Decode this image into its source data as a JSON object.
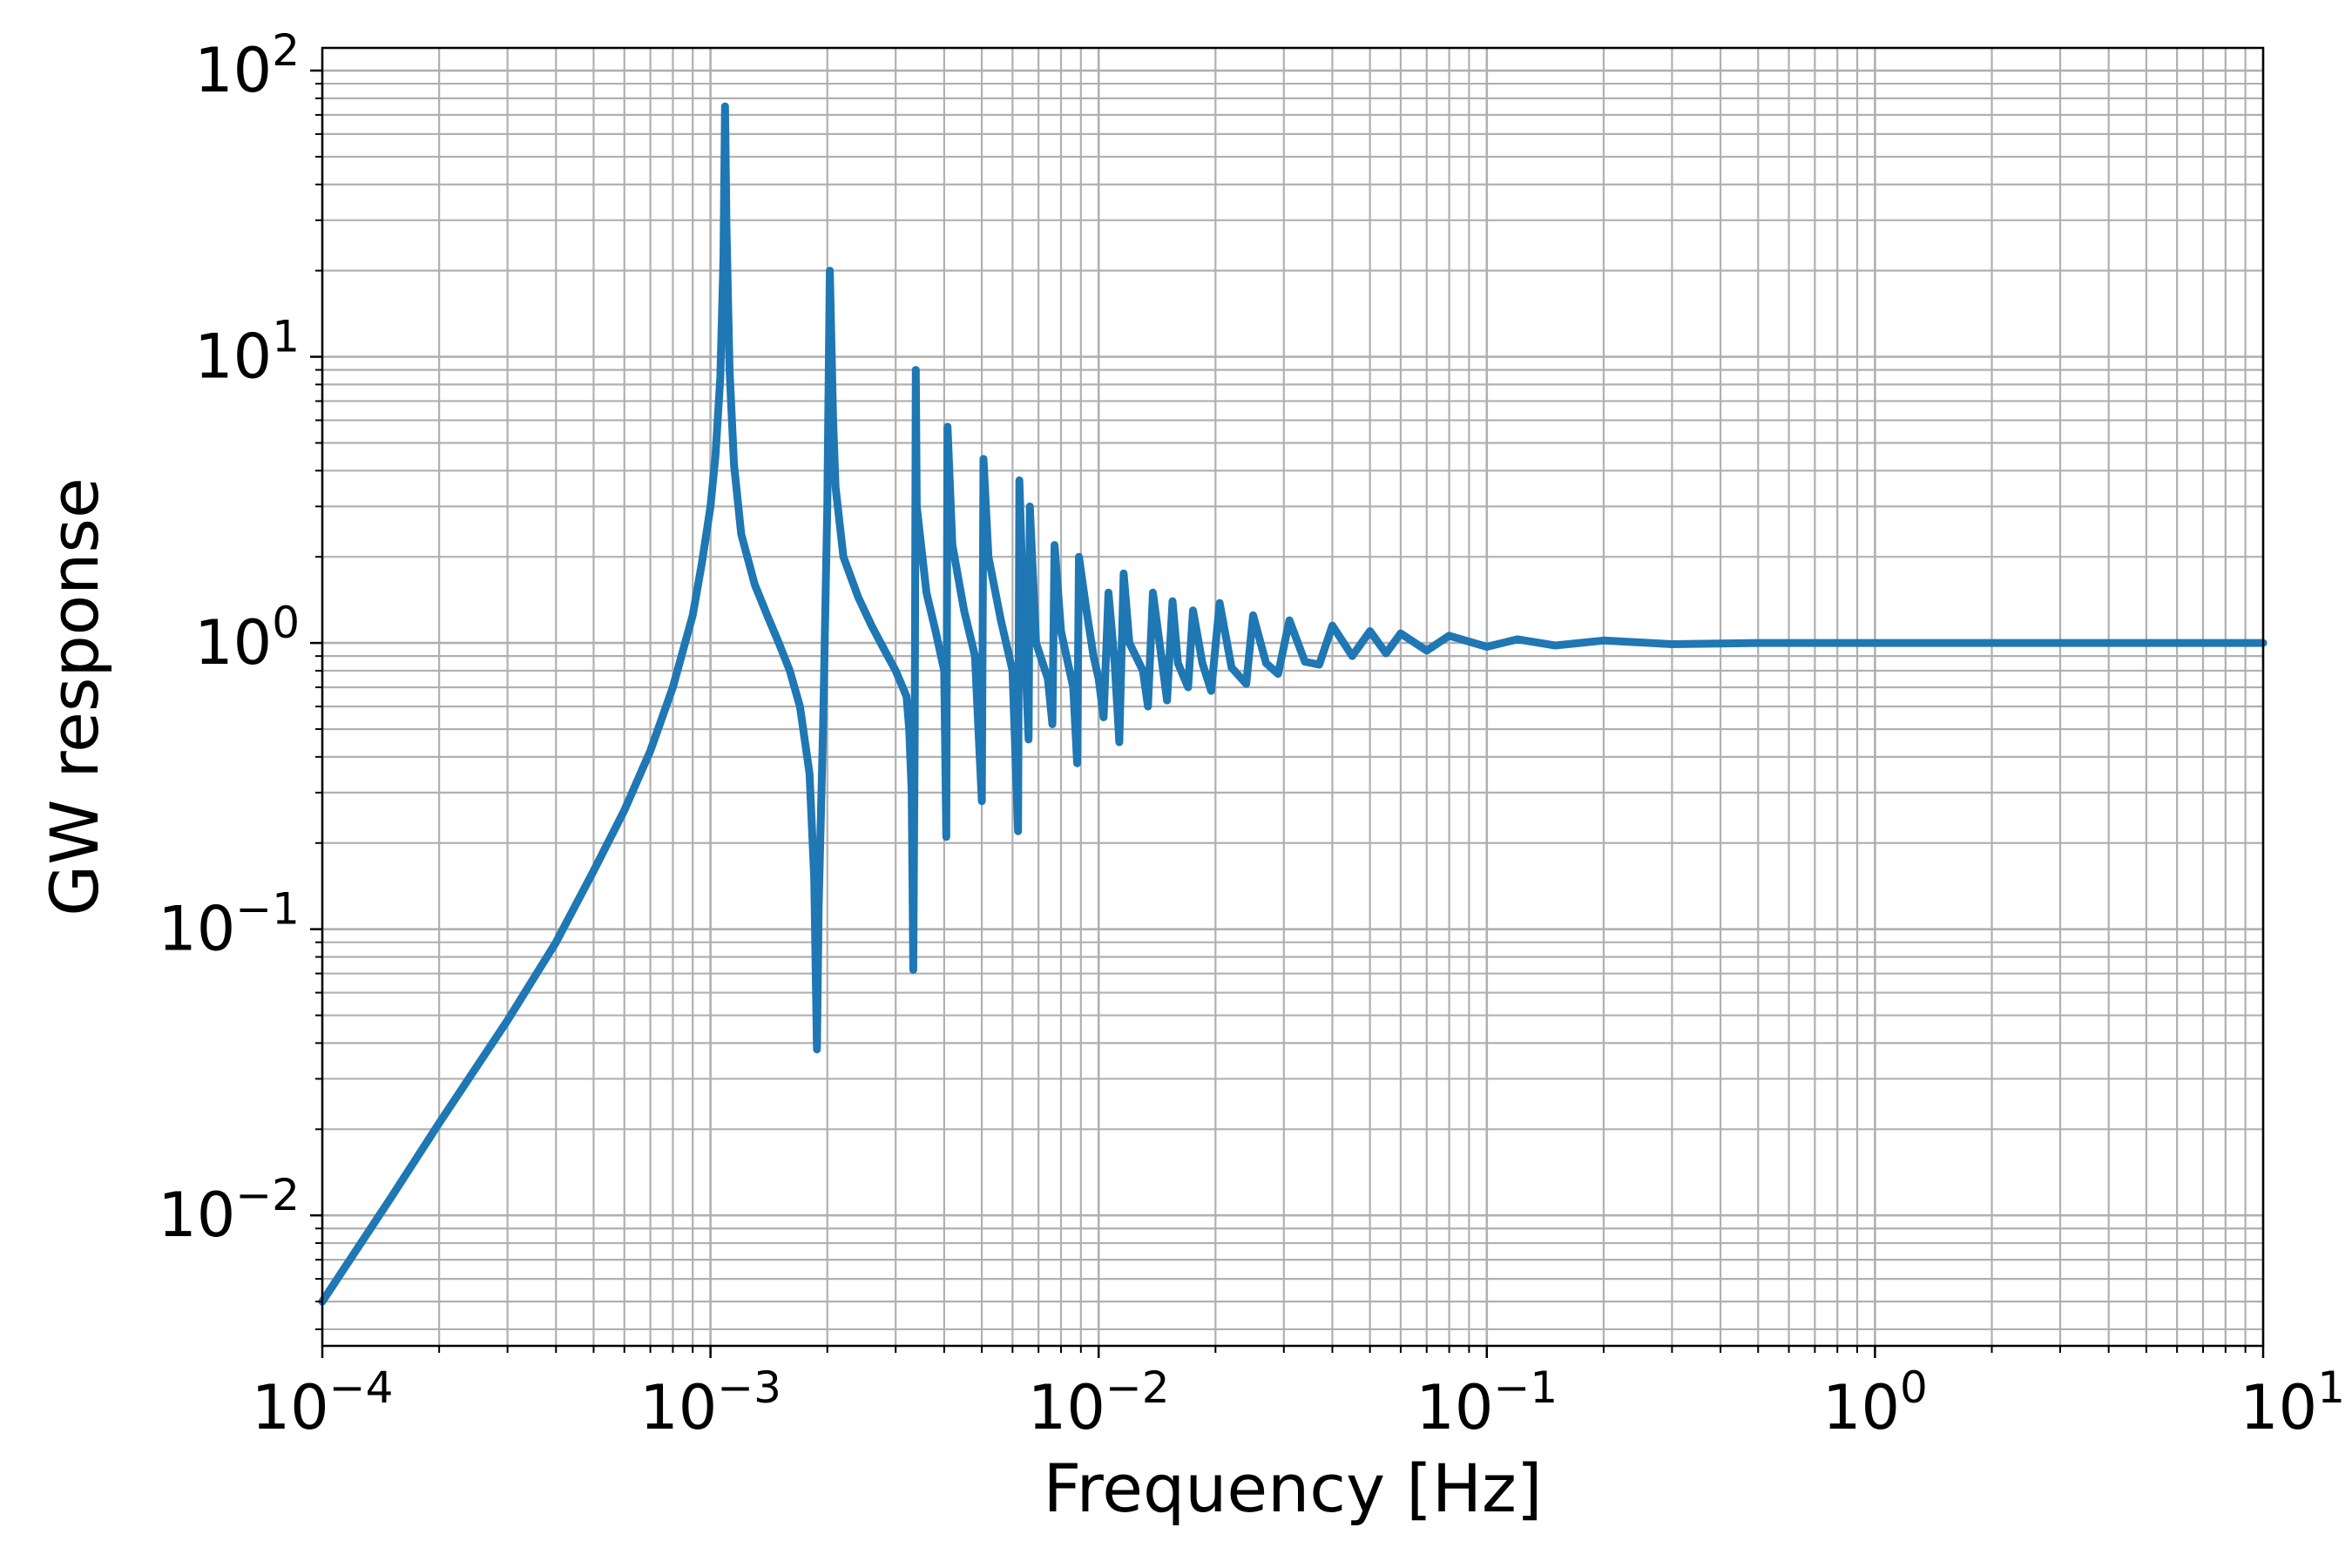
{
  "chart_data": {
    "type": "line",
    "title": "",
    "xlabel": "Frequency [Hz]",
    "ylabel": "GW response",
    "x_scale": "log",
    "y_scale": "log",
    "xlim": [
      0.0001,
      10
    ],
    "ylim": [
      0.0035,
      120
    ],
    "grid": true,
    "grid_minor": true,
    "line_color": "#1f77b4",
    "x_ticks": [
      {
        "value": 0.0001,
        "base": "10",
        "exp": "−4"
      },
      {
        "value": 0.001,
        "base": "10",
        "exp": "−3"
      },
      {
        "value": 0.01,
        "base": "10",
        "exp": "−2"
      },
      {
        "value": 0.1,
        "base": "10",
        "exp": "−1"
      },
      {
        "value": 1,
        "base": "10",
        "exp": "0"
      },
      {
        "value": 10,
        "base": "10",
        "exp": "1"
      }
    ],
    "y_ticks": [
      {
        "value": 0.01,
        "base": "10",
        "exp": "−2"
      },
      {
        "value": 0.1,
        "base": "10",
        "exp": "−1"
      },
      {
        "value": 1,
        "base": "10",
        "exp": "0"
      },
      {
        "value": 10,
        "base": "10",
        "exp": "1"
      },
      {
        "value": 100,
        "base": "10",
        "exp": "2"
      }
    ],
    "series": [
      {
        "values": [
          [
            0.0001,
            0.005
          ],
          [
            0.00015,
            0.0115
          ],
          [
            0.0002,
            0.021
          ],
          [
            0.0003,
            0.048
          ],
          [
            0.0004,
            0.09
          ],
          [
            0.0005,
            0.16
          ],
          [
            0.0006,
            0.26
          ],
          [
            0.0007,
            0.42
          ],
          [
            0.0008,
            0.7
          ],
          [
            0.0009,
            1.25
          ],
          [
            0.00095,
            1.9
          ],
          [
            0.001,
            3.0
          ],
          [
            0.00103,
            4.5
          ],
          [
            0.00106,
            8.5
          ],
          [
            0.00108,
            22
          ],
          [
            0.00109,
            75
          ],
          [
            0.0011,
            28
          ],
          [
            0.00112,
            9
          ],
          [
            0.00115,
            4.2
          ],
          [
            0.0012,
            2.4
          ],
          [
            0.0013,
            1.6
          ],
          [
            0.0014,
            1.25
          ],
          [
            0.0015,
            1.0
          ],
          [
            0.0016,
            0.8
          ],
          [
            0.0017,
            0.6
          ],
          [
            0.0018,
            0.35
          ],
          [
            0.00185,
            0.15
          ],
          [
            0.00188,
            0.038
          ],
          [
            0.0019,
            0.12
          ],
          [
            0.00195,
            0.5
          ],
          [
            0.002,
            3.0
          ],
          [
            0.00203,
            20
          ],
          [
            0.00207,
            6
          ],
          [
            0.0021,
            3.5
          ],
          [
            0.0022,
            2.0
          ],
          [
            0.0024,
            1.45
          ],
          [
            0.0026,
            1.15
          ],
          [
            0.0028,
            0.95
          ],
          [
            0.003,
            0.8
          ],
          [
            0.0032,
            0.65
          ],
          [
            0.00325,
            0.5
          ],
          [
            0.0033,
            0.3
          ],
          [
            0.00333,
            0.072
          ],
          [
            0.00336,
            0.5
          ],
          [
            0.00338,
            9.0
          ],
          [
            0.0034,
            3.0
          ],
          [
            0.0036,
            1.5
          ],
          [
            0.0038,
            1.1
          ],
          [
            0.004,
            0.8
          ],
          [
            0.00405,
            0.21
          ],
          [
            0.00408,
            5.7
          ],
          [
            0.0042,
            2.2
          ],
          [
            0.0045,
            1.3
          ],
          [
            0.0048,
            0.9
          ],
          [
            0.005,
            0.28
          ],
          [
            0.00505,
            4.4
          ],
          [
            0.0052,
            2.0
          ],
          [
            0.0056,
            1.2
          ],
          [
            0.006,
            0.8
          ],
          [
            0.0062,
            0.22
          ],
          [
            0.00625,
            3.7
          ],
          [
            0.0064,
            1.3
          ],
          [
            0.0066,
            0.46
          ],
          [
            0.00665,
            3.0
          ],
          [
            0.0069,
            1.0
          ],
          [
            0.0074,
            0.75
          ],
          [
            0.0076,
            0.52
          ],
          [
            0.0077,
            2.2
          ],
          [
            0.008,
            1.1
          ],
          [
            0.0086,
            0.7
          ],
          [
            0.0088,
            0.38
          ],
          [
            0.0089,
            2.0
          ],
          [
            0.0093,
            1.3
          ],
          [
            0.0097,
            0.9
          ],
          [
            0.01,
            0.75
          ],
          [
            0.0103,
            0.55
          ],
          [
            0.0106,
            1.5
          ],
          [
            0.011,
            0.85
          ],
          [
            0.0113,
            0.45
          ],
          [
            0.0116,
            1.75
          ],
          [
            0.012,
            1.0
          ],
          [
            0.013,
            0.8
          ],
          [
            0.0134,
            0.6
          ],
          [
            0.0138,
            1.5
          ],
          [
            0.0145,
            0.9
          ],
          [
            0.015,
            0.63
          ],
          [
            0.0155,
            1.4
          ],
          [
            0.016,
            0.85
          ],
          [
            0.017,
            0.7
          ],
          [
            0.0175,
            1.3
          ],
          [
            0.0185,
            0.85
          ],
          [
            0.0195,
            0.68
          ],
          [
            0.0205,
            1.38
          ],
          [
            0.022,
            0.82
          ],
          [
            0.024,
            0.72
          ],
          [
            0.025,
            1.25
          ],
          [
            0.027,
            0.85
          ],
          [
            0.029,
            0.78
          ],
          [
            0.031,
            1.2
          ],
          [
            0.034,
            0.86
          ],
          [
            0.037,
            0.84
          ],
          [
            0.04,
            1.15
          ],
          [
            0.045,
            0.9
          ],
          [
            0.05,
            1.1
          ],
          [
            0.055,
            0.92
          ],
          [
            0.06,
            1.08
          ],
          [
            0.07,
            0.94
          ],
          [
            0.08,
            1.06
          ],
          [
            0.1,
            0.97
          ],
          [
            0.12,
            1.03
          ],
          [
            0.15,
            0.98
          ],
          [
            0.2,
            1.02
          ],
          [
            0.3,
            0.99
          ],
          [
            0.5,
            1.0
          ],
          [
            1,
            1.0
          ],
          [
            3,
            1.0
          ],
          [
            10,
            1.0
          ]
        ]
      }
    ]
  }
}
